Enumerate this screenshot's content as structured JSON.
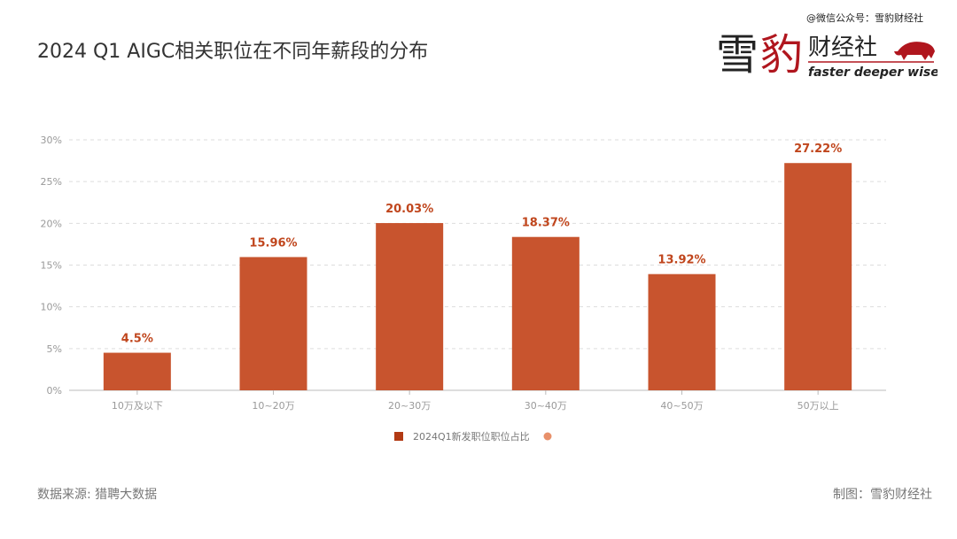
{
  "title": "2024 Q1 AIGC相关职位在不同年薪段的分布",
  "watermark": "@微信公众号：雪豹财经社",
  "logo": {
    "main": "雪豹财经社",
    "tagline": "faster deeper wiser"
  },
  "footer": {
    "source": "数据来源: 猎聘大数据",
    "credit": "制图：雪豹财经社"
  },
  "colors": {
    "bar": "#c8542e",
    "label": "#c0461d",
    "legend_dot": "#e8906a"
  },
  "chart_data": {
    "type": "bar",
    "categories": [
      "10万及以下",
      "10~20万",
      "20~30万",
      "30~40万",
      "40~50万",
      "50万以上"
    ],
    "series": [
      {
        "name": "2024Q1新发职位职位占比",
        "values": [
          4.5,
          15.96,
          20.03,
          18.37,
          13.92,
          27.22
        ]
      }
    ],
    "data_labels": [
      "4.5%",
      "15.96%",
      "20.03%",
      "18.37%",
      "13.92%",
      "27.22%"
    ],
    "yticks": [
      "0%",
      "5%",
      "10%",
      "15%",
      "20%",
      "25%",
      "30%"
    ],
    "ylim": [
      0,
      30
    ],
    "grid": true,
    "legend": "bottom-center"
  }
}
